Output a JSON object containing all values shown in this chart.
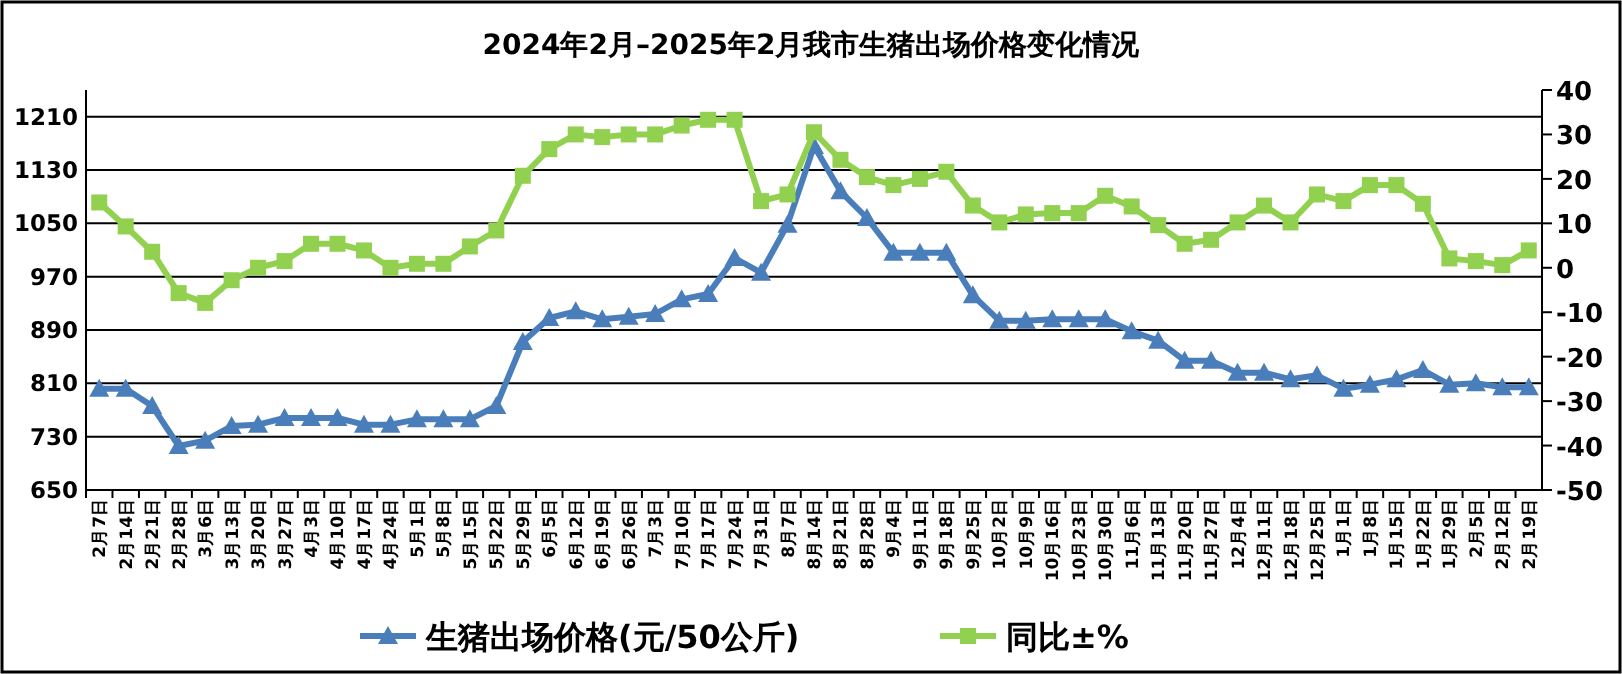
{
  "chart_data": {
    "type": "line",
    "title": "2024年2月–2025年2月我市生猪出场价格变化情况",
    "categories": [
      "2月7日",
      "2月14日",
      "2月21日",
      "2月28日",
      "3月6日",
      "3月13日",
      "3月20日",
      "3月27日",
      "4月3日",
      "4月10日",
      "4月17日",
      "4月24日",
      "5月1日",
      "5月8日",
      "5月15日",
      "5月22日",
      "5月29日",
      "6月5日",
      "6月12日",
      "6月19日",
      "6月26日",
      "7月3日",
      "7月10日",
      "7月17日",
      "7月24日",
      "7月31日",
      "8月7日",
      "8月14日",
      "8月21日",
      "8月28日",
      "9月4日",
      "9月11日",
      "9月18日",
      "9月25日",
      "10月2日",
      "10月9日",
      "10月16日",
      "10月23日",
      "10月30日",
      "11月6日",
      "11月13日",
      "11月20日",
      "11月27日",
      "12月4日",
      "12月11日",
      "12月18日",
      "12月25日",
      "1月1日",
      "1月8日",
      "1月15日",
      "1月22日",
      "1月29日",
      "2月5日",
      "2月12日",
      "2月19日"
    ],
    "series": [
      {
        "name": "生猪出场价格(元/50公斤)",
        "color": "#4a7ebb",
        "marker": "triangle",
        "values": [
          802,
          802,
          776,
          716,
          724,
          746,
          748,
          758,
          758,
          758,
          748,
          748,
          756,
          756,
          756,
          776,
          872,
          908,
          918,
          906,
          910,
          914,
          936,
          944,
          998,
          976,
          1048,
          1166,
          1098,
          1058,
          1006,
          1006,
          1006,
          942,
          904,
          904,
          906,
          906,
          906,
          888,
          874,
          844,
          844,
          826,
          826,
          816,
          822,
          802,
          808,
          816,
          830,
          808,
          810,
          804,
          804
        ]
      },
      {
        "name": "同比±%",
        "color": "#92d050",
        "marker": "square",
        "axis": "y2",
        "values": [
          14.7,
          9.3,
          3.6,
          -5.7,
          -7.9,
          -2.8,
          0,
          1.5,
          5.4,
          5.4,
          3.9,
          0,
          0.9,
          0.9,
          4.8,
          8.4,
          20.7,
          26.7,
          30,
          29.4,
          30,
          30,
          32,
          33.3,
          33.3,
          15,
          16.5,
          30.5,
          24.3,
          20.4,
          18.6,
          20,
          21.6,
          14,
          10.2,
          12,
          12.3,
          12.3,
          16.2,
          13.8,
          9.6,
          5.4,
          6.3,
          10.2,
          14,
          10.2,
          16.5,
          15,
          18.6,
          18.6,
          14.4,
          2.1,
          1.5,
          0.6,
          3.9
        ]
      }
    ],
    "ylim": [
      650,
      1250
    ],
    "yticks": [
      650,
      730,
      810,
      890,
      970,
      1050,
      1130,
      1210
    ],
    "y2lim": [
      -50,
      40
    ],
    "y2ticks": [
      -50,
      -40,
      -30,
      -20,
      -10,
      0,
      10,
      20,
      30,
      40
    ],
    "grid": "y",
    "legend": "bottom"
  }
}
